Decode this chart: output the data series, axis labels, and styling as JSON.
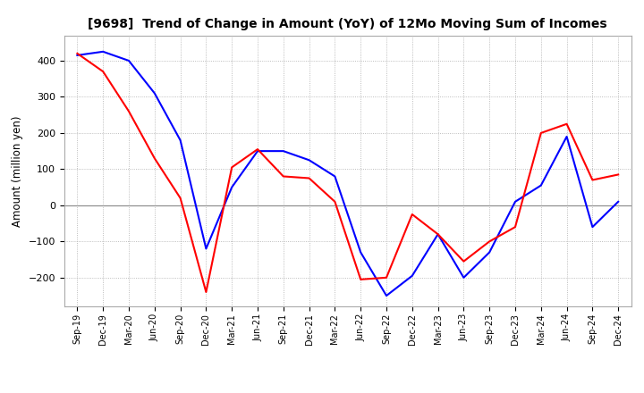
{
  "title": "[9698]  Trend of Change in Amount (YoY) of 12Mo Moving Sum of Incomes",
  "ylabel": "Amount (million yen)",
  "background_color": "#ffffff",
  "grid_color": "#aaaaaa",
  "line_color_ordinary": "#0000ff",
  "line_color_net": "#ff0000",
  "x_labels": [
    "Sep-19",
    "Dec-19",
    "Mar-20",
    "Jun-20",
    "Sep-20",
    "Dec-20",
    "Mar-21",
    "Jun-21",
    "Sep-21",
    "Dec-21",
    "Mar-22",
    "Jun-22",
    "Sep-22",
    "Dec-22",
    "Mar-23",
    "Jun-23",
    "Sep-23",
    "Dec-23",
    "Mar-24",
    "Jun-24",
    "Sep-24",
    "Dec-24"
  ],
  "ordinary_income": [
    415,
    425,
    400,
    310,
    180,
    -120,
    50,
    150,
    150,
    125,
    80,
    -130,
    -250,
    -195,
    -80,
    -200,
    -130,
    10,
    55,
    190,
    -60,
    10
  ],
  "net_income": [
    420,
    370,
    260,
    130,
    20,
    -240,
    105,
    155,
    80,
    75,
    10,
    -205,
    -200,
    -25,
    -80,
    -155,
    -100,
    -60,
    200,
    225,
    70,
    85
  ],
  "ylim_min": -280,
  "ylim_max": 470,
  "yticks": [
    -200,
    -100,
    0,
    100,
    200,
    300,
    400
  ]
}
